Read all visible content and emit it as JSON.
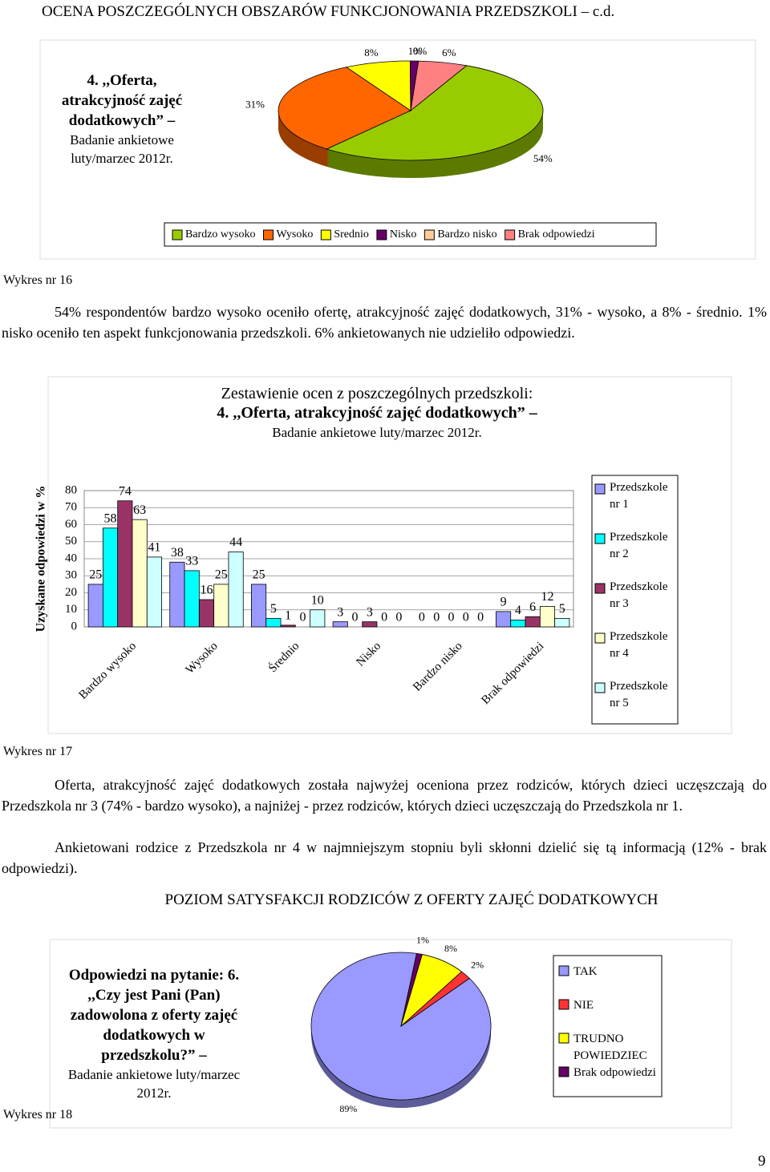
{
  "header": "OCENA POSZCZEGÓLNYCH OBSZARÓW FUNKCJONOWANIA PRZEDSZKOLI – c.d.",
  "captions": [
    "Wykres nr 16",
    "Wykres nr 17",
    "Wykres nr 18"
  ],
  "paragraphs": [
    "54% respondentów bardzo wysoko oceniło ofertę, atrakcyjność zajęć dodatkowych, 31% - wysoko, a 8% - średnio. 1% nisko oceniło ten aspekt funkcjonowania przedszkoli. 6% ankietowanych nie udzieliło odpowiedzi.",
    "Oferta, atrakcyjność zajęć dodatkowych została najwyżej oceniona przez rodziców, których dzieci uczęszczają do Przedszkola nr 3 (74% - bardzo wysoko), a najniżej - przez rodziców, których dzieci uczęszczają do Przedszkola nr 1.",
    "Ankietowani rodzice z Przedszkola nr 4 w najmniejszym stopniu byli skłonni dzielić się tą informacją (12% - brak odpowiedzi)."
  ],
  "section_title": "POZIOM SATYSFAKCJI RODZICÓW Z OFERTY ZAJĘĆ DODATKOWYCH",
  "page_number": "9",
  "chart_data": [
    {
      "type": "pie",
      "title": "4. ,,Oferta, atrakcyjność zajęć dodatkowych” –",
      "subtitle": "Badanie ankietowe luty/marzec 2012r.",
      "categories": [
        "Bardzo wysoko",
        "Wysoko",
        "Srednio",
        "Nisko",
        "Bardzo nisko",
        "Brak odpowiedzi"
      ],
      "values": [
        54,
        31,
        8,
        1,
        0,
        6
      ],
      "value_labels": [
        "54%",
        "31%",
        "8%",
        "1%",
        "0%",
        "6%"
      ],
      "colors": [
        "#99cc00",
        "#ff6600",
        "#ffff00",
        "#660066",
        "#ffcc99",
        "#ff8080"
      ],
      "legend": "bottom"
    },
    {
      "type": "bar",
      "title": "Zestawienie ocen z poszczególnych przedszkoli:",
      "subtitle": "4. ,,Oferta, atrakcyjność zajęć dodatkowych” –",
      "source": "Badanie ankietowe luty/marzec 2012r.",
      "ylabel": "Uzyskane odpowiedzi w %",
      "categories": [
        "Bardzo wysoko",
        "Wysoko",
        "Średnio",
        "Nisko",
        "Bardzo nisko",
        "Brak odpowiedzi"
      ],
      "series": [
        {
          "name": "Przedszkole nr 1",
          "color": "#9999ff",
          "values": [
            25,
            38,
            25,
            3,
            0,
            9
          ]
        },
        {
          "name": "Przedszkole nr 2",
          "color": "#00ffff",
          "values": [
            58,
            33,
            5,
            0,
            0,
            4
          ]
        },
        {
          "name": "Przedszkole nr 3",
          "color": "#993366",
          "values": [
            74,
            16,
            1,
            3,
            0,
            6
          ]
        },
        {
          "name": "Przedszkole nr 4",
          "color": "#ffffcc",
          "values": [
            63,
            25,
            0,
            0,
            0,
            12
          ]
        },
        {
          "name": "Przedszkole nr 5",
          "color": "#ccffff",
          "values": [
            41,
            44,
            10,
            0,
            0,
            5
          ]
        }
      ],
      "ylim": [
        0,
        80
      ],
      "yticks": [
        0,
        10,
        20,
        30,
        40,
        50,
        60,
        70,
        80
      ],
      "grid": true,
      "legend": "right"
    },
    {
      "type": "pie",
      "title": "Odpowiedzi na pytanie: 6. ,,Czy jest Pani (Pan) zadowolona z oferty zajęć dodatkowych w przedszkolu?” –",
      "subtitle": "Badanie ankietowe luty/marzec 2012r.",
      "categories": [
        "TAK",
        "NIE",
        "TRUDNO POWIEDZIEC",
        "Brak odpowiedzi"
      ],
      "values": [
        89,
        2,
        8,
        1
      ],
      "value_labels": [
        "89%",
        "2%",
        "8%",
        "1%"
      ],
      "colors": [
        "#9999ff",
        "#ff3333",
        "#ffff00",
        "#660066"
      ],
      "legend": "right"
    }
  ]
}
